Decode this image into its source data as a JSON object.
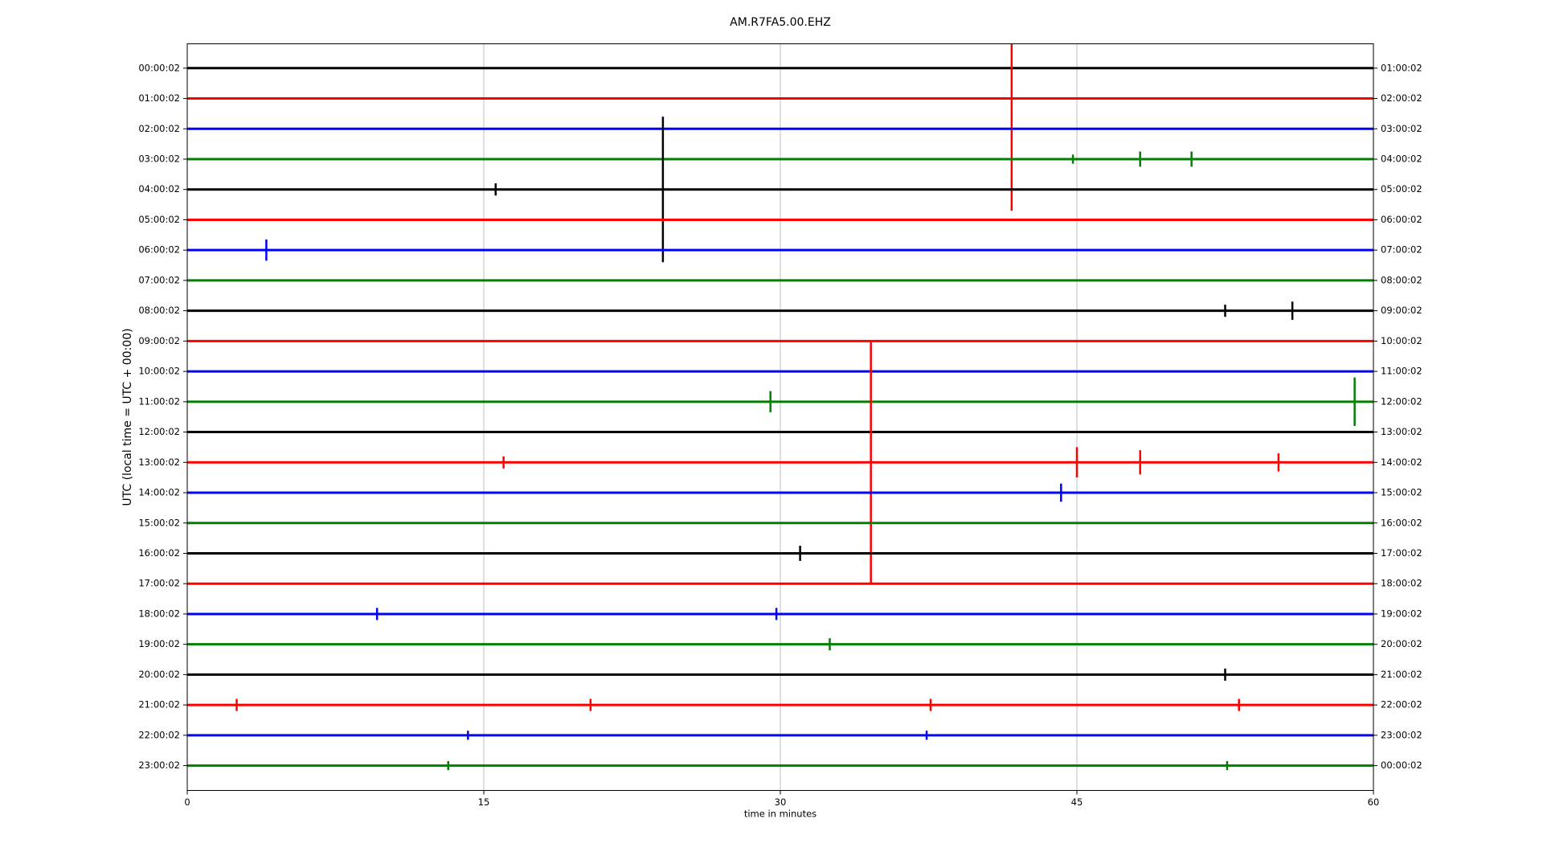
{
  "chart_data": {
    "type": "dayplot",
    "title": "AM.R7FA5.00.EHZ",
    "xlabel": "time in minutes",
    "ylabel": "UTC (local time = UTC + 00:00)",
    "xlim": [
      0,
      60
    ],
    "xticks": [
      0,
      15,
      30,
      45,
      60
    ],
    "grid": true,
    "rows": [
      {
        "label": "00:00:02",
        "right_label": "01:00:02",
        "color": "#000000",
        "events": {
          "x": [],
          "amp": []
        }
      },
      {
        "label": "01:00:02",
        "right_label": "02:00:02",
        "color": "#ff0000",
        "events": {
          "x": [
            41.7
          ],
          "amp": [
            3.7
          ]
        }
      },
      {
        "label": "02:00:02",
        "right_label": "03:00:02",
        "color": "#0000ff",
        "events": {
          "x": [],
          "amp": []
        }
      },
      {
        "label": "03:00:02",
        "right_label": "04:00:02",
        "color": "#008000",
        "events": {
          "x": [
            44.8,
            48.2,
            50.8
          ],
          "amp": [
            0.15,
            0.25,
            0.25
          ]
        }
      },
      {
        "label": "04:00:02",
        "right_label": "05:00:02",
        "color": "#000000",
        "events": {
          "x": [
            15.6,
            24.06
          ],
          "amp": [
            0.2,
            2.4
          ]
        }
      },
      {
        "label": "05:00:02",
        "right_label": "06:00:02",
        "color": "#ff0000",
        "events": {
          "x": [],
          "amp": []
        }
      },
      {
        "label": "06:00:02",
        "right_label": "07:00:02",
        "color": "#0000ff",
        "events": {
          "x": [
            4.0
          ],
          "amp": [
            0.35
          ]
        }
      },
      {
        "label": "07:00:02",
        "right_label": "08:00:02",
        "color": "#008000",
        "events": {
          "x": [],
          "amp": []
        }
      },
      {
        "label": "08:00:02",
        "right_label": "09:00:02",
        "color": "#000000",
        "events": {
          "x": [
            52.5,
            55.9
          ],
          "amp": [
            0.2,
            0.3
          ]
        }
      },
      {
        "label": "09:00:02",
        "right_label": "10:00:02",
        "color": "#ff0000",
        "events": {
          "x": [],
          "amp": []
        }
      },
      {
        "label": "10:00:02",
        "right_label": "11:00:02",
        "color": "#0000ff",
        "events": {
          "x": [],
          "amp": []
        }
      },
      {
        "label": "11:00:02",
        "right_label": "12:00:02",
        "color": "#008000",
        "events": {
          "x": [
            29.5,
            59.05
          ],
          "amp": [
            0.35,
            0.8
          ]
        }
      },
      {
        "label": "12:00:02",
        "right_label": "13:00:02",
        "color": "#000000",
        "events": {
          "x": [],
          "amp": []
        }
      },
      {
        "label": "13:00:02",
        "right_label": "14:00:02",
        "color": "#ff0000",
        "events": {
          "x": [
            16,
            34.58,
            45,
            48.2,
            55.2
          ],
          "amp": [
            0.2,
            4.0,
            0.5,
            0.4,
            0.3
          ]
        }
      },
      {
        "label": "14:00:02",
        "right_label": "15:00:02",
        "color": "#0000ff",
        "events": {
          "x": [
            44.2
          ],
          "amp": [
            0.3
          ]
        }
      },
      {
        "label": "15:00:02",
        "right_label": "16:00:02",
        "color": "#008000",
        "events": {
          "x": [],
          "amp": []
        }
      },
      {
        "label": "16:00:02",
        "right_label": "17:00:02",
        "color": "#000000",
        "events": {
          "x": [
            31
          ],
          "amp": [
            0.25
          ]
        }
      },
      {
        "label": "17:00:02",
        "right_label": "18:00:02",
        "color": "#ff0000",
        "events": {
          "x": [],
          "amp": []
        }
      },
      {
        "label": "18:00:02",
        "right_label": "19:00:02",
        "color": "#0000ff",
        "events": {
          "x": [
            9.6,
            29.8
          ],
          "amp": [
            0.2,
            0.2
          ]
        }
      },
      {
        "label": "19:00:02",
        "right_label": "20:00:02",
        "color": "#008000",
        "events": {
          "x": [
            32.5
          ],
          "amp": [
            0.2
          ]
        }
      },
      {
        "label": "20:00:02",
        "right_label": "21:00:02",
        "color": "#000000",
        "events": {
          "x": [
            52.5
          ],
          "amp": [
            0.2
          ]
        }
      },
      {
        "label": "21:00:02",
        "right_label": "22:00:02",
        "color": "#ff0000",
        "events": {
          "x": [
            2.5,
            20.4,
            37.6,
            53.2
          ],
          "amp": [
            0.2,
            0.2,
            0.2,
            0.2
          ]
        }
      },
      {
        "label": "22:00:02",
        "right_label": "23:00:02",
        "color": "#0000ff",
        "events": {
          "x": [
            14.2,
            37.4
          ],
          "amp": [
            0.15,
            0.15
          ]
        }
      },
      {
        "label": "23:00:02",
        "right_label": "00:00:02",
        "color": "#008000",
        "events": {
          "x": [
            13.2,
            52.6
          ],
          "amp": [
            0.15,
            0.15
          ]
        }
      }
    ]
  }
}
